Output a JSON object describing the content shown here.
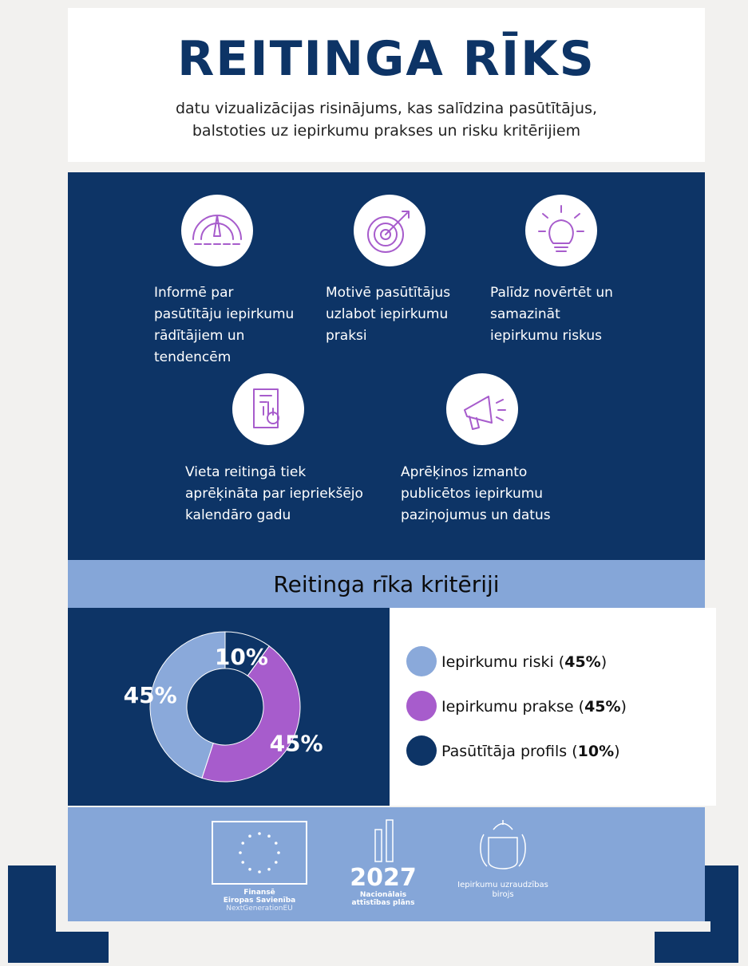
{
  "header": {
    "title": "REITINGA RĪKS",
    "subtitle": [
      "datu vizualizācijas risinājums, kas salīdzina pasūtītājus,",
      "balstoties uz iepirkumu prakses un risku kritērijiem"
    ]
  },
  "features": [
    {
      "lines": [
        "Informē par",
        "pasūtītāju iepirkumu",
        "rādītājiem un",
        "tendencēm"
      ]
    },
    {
      "lines": [
        "Motivē pasūtītājus",
        "uzlabot iepirkumu",
        "praksi"
      ]
    },
    {
      "lines": [
        "Palīdz novērtēt un",
        "samazināt",
        "iepirkumu riskus"
      ]
    },
    {
      "lines": [
        "Vieta reitingā tiek",
        "aprēķināta par iepriekšējo",
        "kalendāro gadu"
      ]
    },
    {
      "lines": [
        "Aprēķinos izmanto",
        "publicētos iepirkumu",
        "paziņojumus un datus"
      ]
    }
  ],
  "section_title": "Reitinga rīka kritēriji",
  "chart_data": {
    "type": "pie",
    "categories": [
      "Pasūtītāja profils",
      "Iepirkumu prakse",
      "Iepirkumu riski"
    ],
    "values": [
      10,
      45,
      45
    ],
    "value_labels": [
      "10%",
      "45%",
      "45%"
    ],
    "colors": [
      "#0d3466",
      "#a75ccc",
      "#8aa9da"
    ]
  },
  "legend": [
    {
      "text": "Iepirkumu riski (",
      "bold": "45%",
      "end": ")",
      "color": "#8aa9da"
    },
    {
      "text": "Iepirkumu prakse (",
      "bold": "45%",
      "end": ")",
      "color": "#a75ccc"
    },
    {
      "text": "Pasūtītāja profils (",
      "bold": "10%",
      "end": ")",
      "color": "#0d3466"
    }
  ],
  "footer": {
    "eu": [
      "Finansē",
      "Eiropas Savienība",
      "NextGenerationEU"
    ],
    "nap": {
      "year": "2027",
      "lines": [
        "Nacionālais",
        "attīstības plāns"
      ]
    },
    "iub": [
      "Iepirkumu uzraudzības",
      "birojs"
    ]
  }
}
